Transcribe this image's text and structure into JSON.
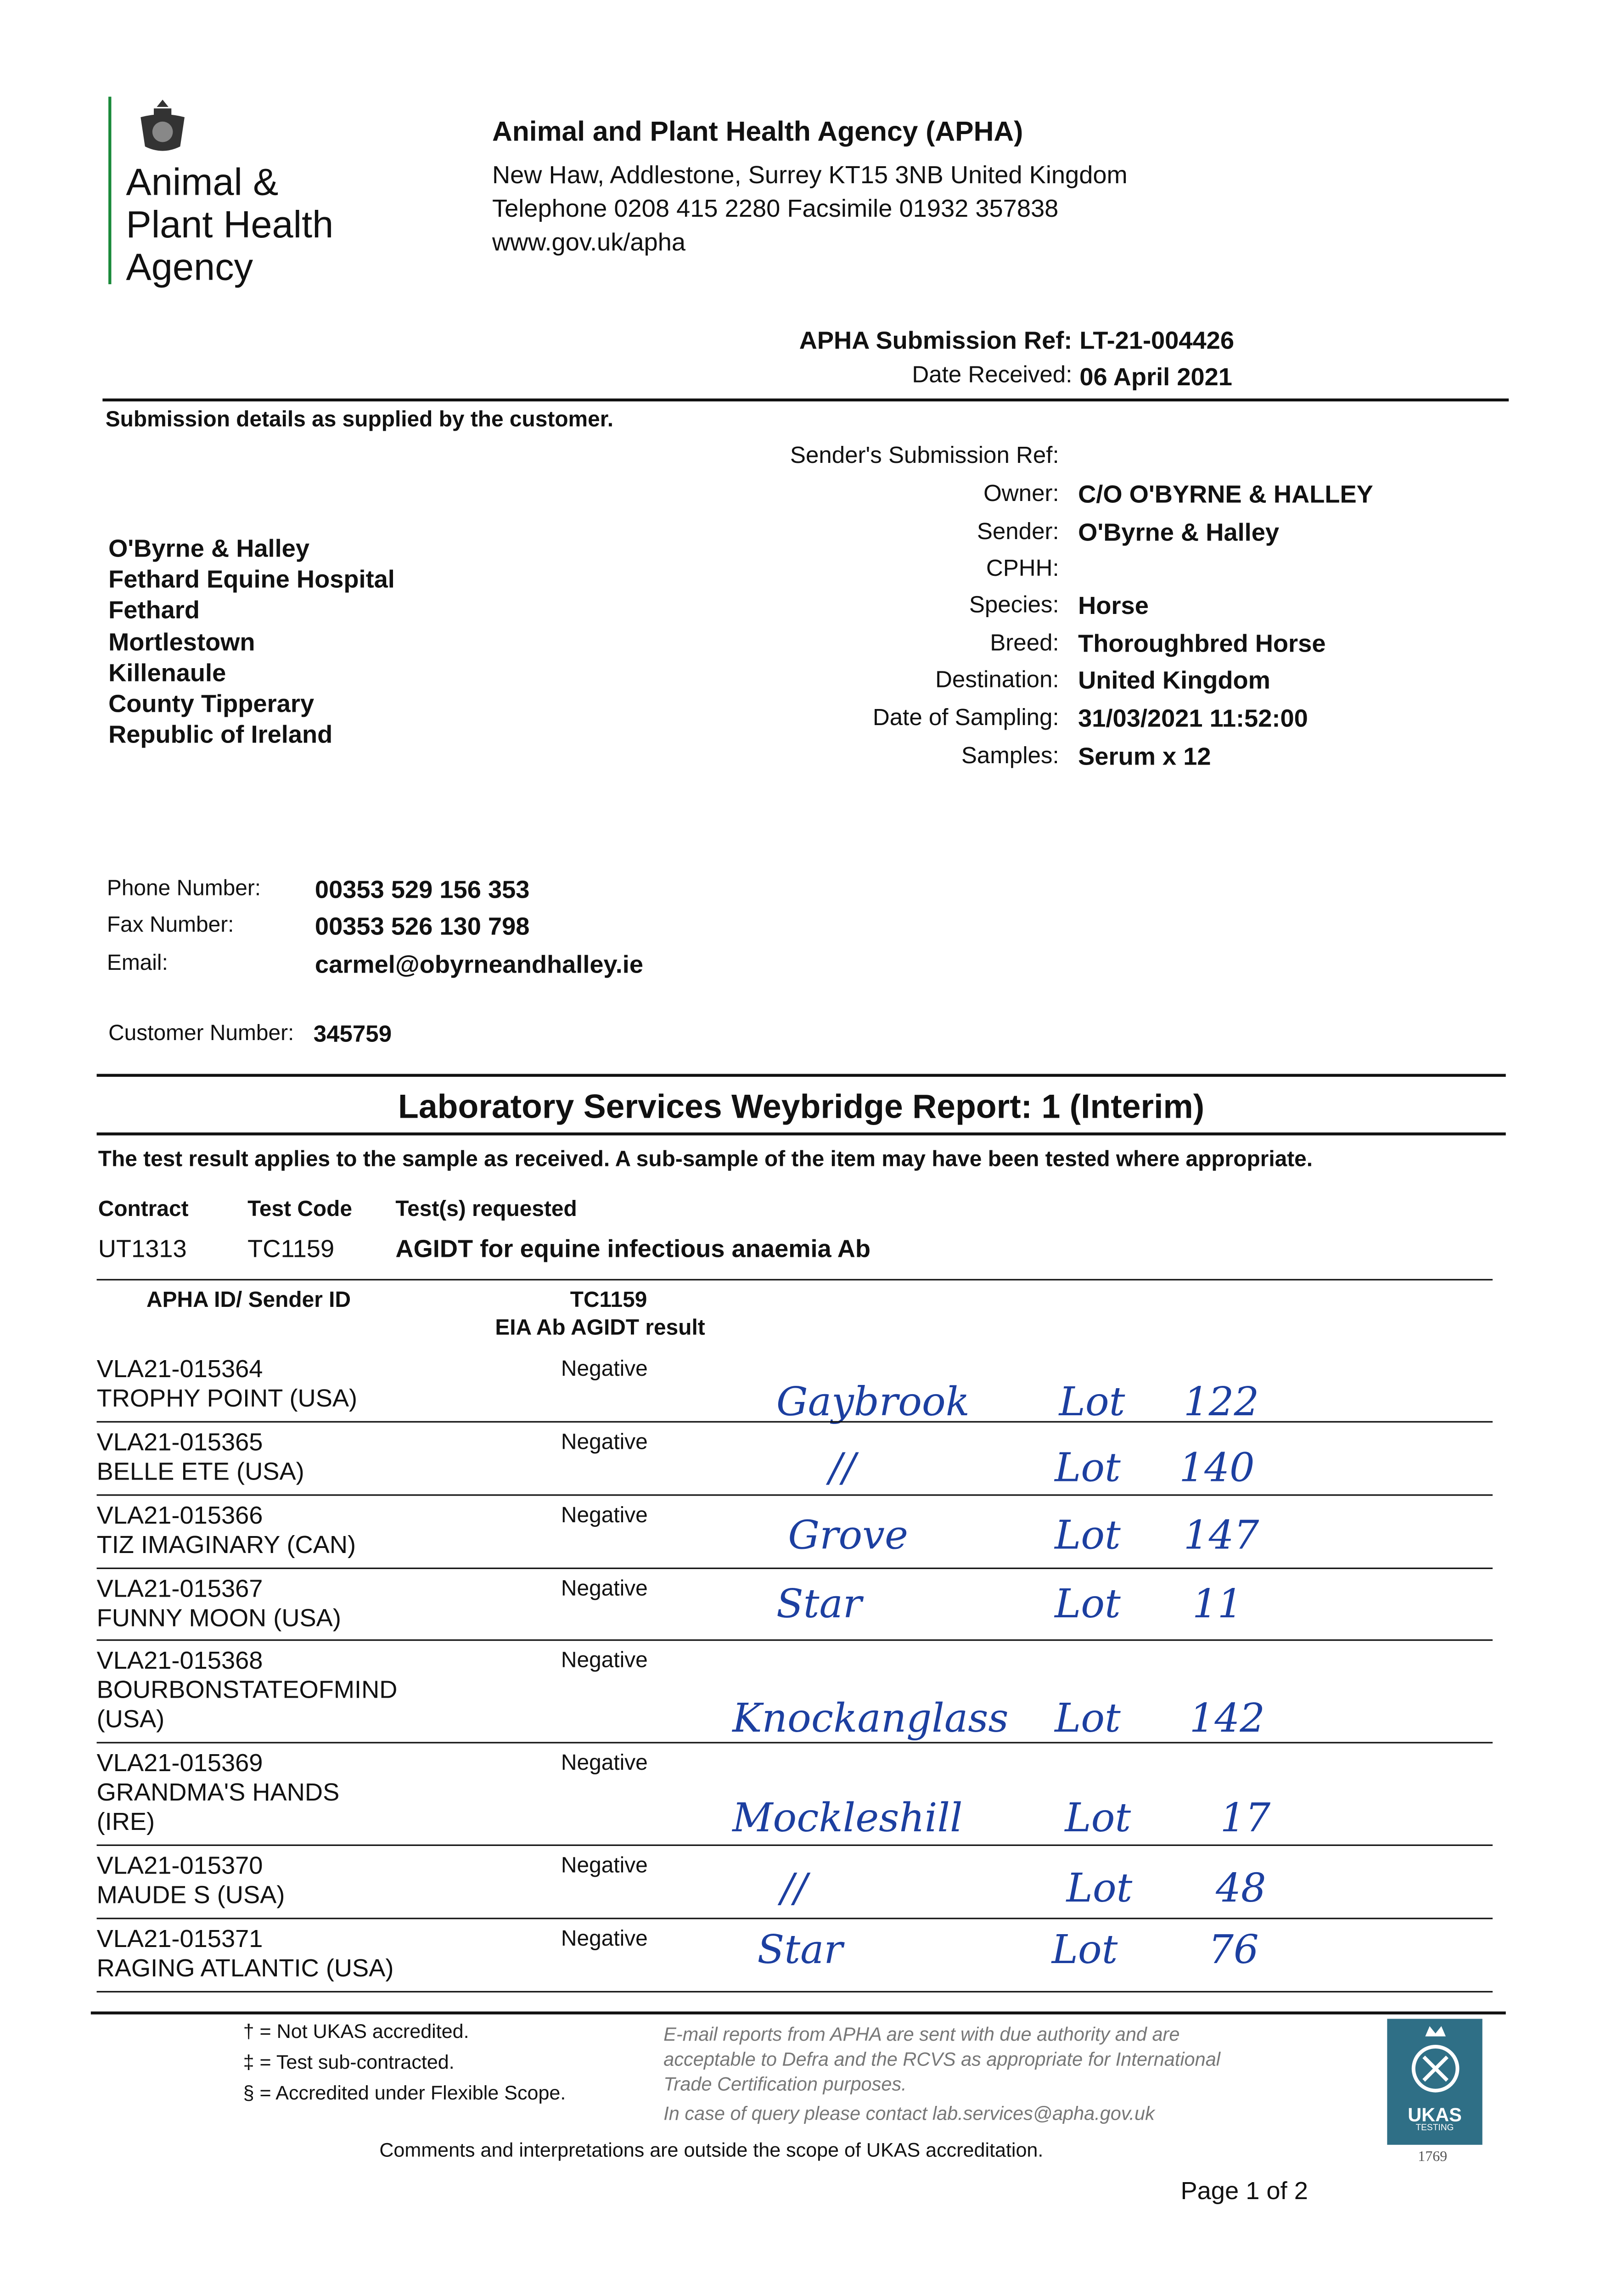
{
  "logo": {
    "lines": [
      "Animal &",
      "Plant Health",
      "Agency"
    ],
    "icon": "royal-coat-of-arms",
    "accent": "#1a8a3a"
  },
  "agency": {
    "name": "Animal and Plant Health Agency (APHA)",
    "address": "New Haw, Addlestone, Surrey KT15 3NB United Kingdom",
    "phone": "Telephone 0208 415 2280 Facsimile 01932 357838",
    "web": "www.gov.uk/apha"
  },
  "ref": {
    "label": "APHA Submission Ref:",
    "value": "LT-21-004426",
    "date_label": "Date Received:",
    "date_value": "06 April 2021"
  },
  "submission_heading": "Submission details as supplied by the customer.",
  "customer_address": [
    "O'Byrne & Halley",
    "Fethard Equine Hospital",
    "Fethard",
    "Mortlestown",
    "Killenaule",
    "County Tipperary",
    "Republic of Ireland"
  ],
  "details": [
    {
      "label": "Sender's Submission Ref:",
      "value": ""
    },
    {
      "label": "Owner:",
      "value": "C/O O'BYRNE & HALLEY"
    },
    {
      "label": "Sender:",
      "value": "O'Byrne & Halley"
    },
    {
      "label": "CPHH:",
      "value": ""
    },
    {
      "label": "Species:",
      "value": "Horse"
    },
    {
      "label": "Breed:",
      "value": "Thoroughbred Horse"
    },
    {
      "label": "Destination:",
      "value": "United Kingdom"
    },
    {
      "label": "Date of Sampling:",
      "value": "31/03/2021 11:52:00"
    },
    {
      "label": "Samples:",
      "value": "Serum x 12"
    }
  ],
  "contact": [
    {
      "label": "Phone Number:",
      "value": "00353 529 156 353"
    },
    {
      "label": "Fax Number:",
      "value": "00353 526 130 798"
    },
    {
      "label": "Email:",
      "value": "carmel@obyrneandhalley.ie"
    }
  ],
  "customer_number": {
    "label": "Customer Number:",
    "value": "345759"
  },
  "report": {
    "title": "Laboratory Services Weybridge Report: 1 (Interim)",
    "note": "The test result applies to the sample as received. A sub-sample of the item may have been tested where appropriate.",
    "contract_headers": [
      "Contract",
      "Test Code",
      "Test(s) requested"
    ],
    "contract_values": [
      "UT1313",
      "TC1159",
      "AGIDT for equine infectious anaemia Ab"
    ],
    "table_headers": {
      "id": "APHA ID/ Sender ID",
      "code": "TC1159",
      "result": "EIA Ab AGIDT result"
    },
    "rows": [
      {
        "id": "VLA21-015364",
        "name": "TROPHY POINT (USA)",
        "result": "Negative",
        "hw": [
          "Gaybrook",
          "Lot",
          "122"
        ]
      },
      {
        "id": "VLA21-015365",
        "name": "BELLE ETE (USA)",
        "result": "Negative",
        "hw": [
          "//",
          "Lot",
          "140"
        ]
      },
      {
        "id": "VLA21-015366",
        "name": "TIZ IMAGINARY (CAN)",
        "result": "Negative",
        "hw": [
          "Grove",
          "Lot",
          "147"
        ]
      },
      {
        "id": "VLA21-015367",
        "name": "FUNNY MOON (USA)",
        "result": "Negative",
        "hw": [
          "Star",
          "Lot",
          "11"
        ]
      },
      {
        "id": "VLA21-015368",
        "name": "BOURBONSTATEOFMIND",
        "name2": " (USA)",
        "result": "Negative",
        "hw": [
          "Knockanglass",
          "Lot",
          "142"
        ]
      },
      {
        "id": "VLA21-015369",
        "name": "GRANDMA'S HANDS",
        "name2": "(IRE)",
        "result": "Negative",
        "hw": [
          "Mockleshill",
          "Lot",
          "17"
        ]
      },
      {
        "id": "VLA21-015370",
        "name": "MAUDE S (USA)",
        "result": "Negative",
        "hw": [
          "//",
          "Lot",
          "48"
        ]
      },
      {
        "id": "VLA21-015371",
        "name": "RAGING ATLANTIC (USA)",
        "result": "Negative",
        "hw": [
          "Star",
          "Lot",
          "76"
        ]
      }
    ]
  },
  "footer": {
    "legend": [
      "† = Not UKAS accredited.",
      "‡ = Test sub-contracted.",
      "§ = Accredited under Flexible Scope."
    ],
    "email_note": [
      "E-mail reports from APHA are sent with due authority and are",
      "acceptable to Defra and the RCVS as appropriate for International",
      "Trade Certification purposes."
    ],
    "query": "In case of query please contact lab.services@apha.gov.uk",
    "comments": "Comments and interpretations are outside the scope of UKAS accreditation.",
    "ukas": {
      "text": "UKAS",
      "sub": "TESTING",
      "number": "1769",
      "color": "#2f6f86"
    },
    "page": "Page 1 of 2"
  }
}
